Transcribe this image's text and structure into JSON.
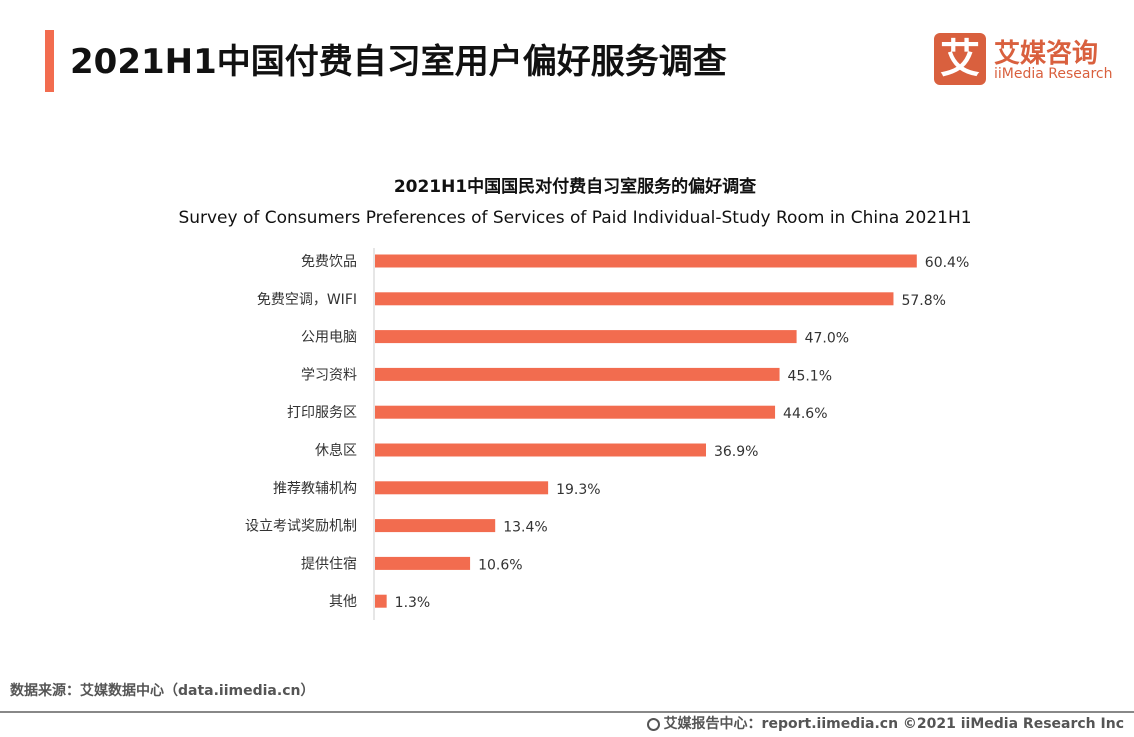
{
  "header": {
    "title": "2021H1中国付费自习室用户偏好服务调查"
  },
  "logo": {
    "mark": "艾",
    "cn": "艾媒咨询",
    "en": "iiMedia Research"
  },
  "colors": {
    "accent": "#f26c4f",
    "bar": "#f26c4f",
    "logo": "#d9603e"
  },
  "chart_data": {
    "type": "bar",
    "orientation": "horizontal",
    "title": "2021H1中国国民对付费自习室服务的偏好调查",
    "subtitle": "Survey of Consumers Preferences of Services of Paid Individual-Study Room in China 2021H1",
    "categories": [
      "免费饮品",
      "免费空调，WIFI",
      "公用电脑",
      "学习资料",
      "打印服务区",
      "休息区",
      "推荐教辅机构",
      "设立考试奖励机制",
      "提供住宿",
      "其他"
    ],
    "values": [
      60.4,
      57.8,
      47.0,
      45.1,
      44.6,
      36.9,
      19.3,
      13.4,
      10.6,
      1.3
    ],
    "labels": [
      "60.4%",
      "57.8%",
      "47.0%",
      "45.1%",
      "44.6%",
      "36.9%",
      "19.3%",
      "13.4%",
      "10.6%",
      "1.3%"
    ],
    "unit": "%",
    "grid": false,
    "legend": "none"
  },
  "source": "数据来源：艾媒数据中心（data.iimedia.cn）",
  "footer": "艾媒报告中心：report.iimedia.cn   ©2021  iiMedia Research  Inc"
}
